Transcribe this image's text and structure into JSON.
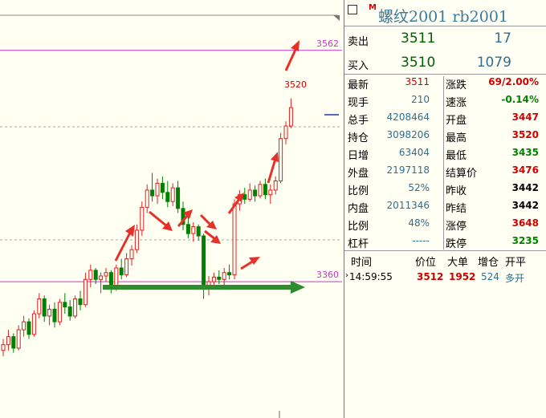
{
  "header": {
    "title": "螺纹2001 rb2001"
  },
  "order_book": [
    {
      "label": "卖出",
      "price": 3511,
      "volume": 17
    },
    {
      "label": "买入",
      "price": 3510,
      "volume": 1079
    }
  ],
  "stats": [
    {
      "label": "最新",
      "value": 3511,
      "color": "#d00000",
      "label2": "涨跌",
      "value2": "69/2.00%",
      "color2": "#d00000"
    },
    {
      "label": "现手",
      "value": 210,
      "color": "#2f6f8f",
      "label2": "速涨",
      "value2": "-0.14%",
      "color2": "#008000"
    },
    {
      "label": "总手",
      "value": 4208464,
      "color": "#2f6f8f",
      "label2": "开盘",
      "value2": 3447,
      "color2": "#d00000"
    },
    {
      "label": "持仓",
      "value": 3098206,
      "color": "#2f6f8f",
      "label2": "最高",
      "value2": 3520,
      "color2": "#d00000"
    },
    {
      "label": "日增",
      "value": 63404,
      "color": "#2f6f8f",
      "label2": "最低",
      "value2": 3435,
      "color2": "#008000"
    },
    {
      "label": "外盘",
      "value": 2197118,
      "color": "#2f6f8f",
      "label2": "结算价",
      "value2": 3476,
      "color2": "#d00000"
    },
    {
      "label": "比例",
      "value": "52%",
      "color": "#2f6f8f",
      "label2": "昨收",
      "value2": 3442,
      "color2": "#000000"
    },
    {
      "label": "内盘",
      "value": 2011346,
      "color": "#2f6f8f",
      "label2": "昨结",
      "value2": 3442,
      "color2": "#000000"
    },
    {
      "label": "比例",
      "value": "48%",
      "color": "#2f6f8f",
      "label2": "涨停",
      "value2": 3648,
      "color2": "#d00000"
    },
    {
      "label": "杠杆",
      "value": "-----",
      "color": "#2f6f8f",
      "label2": "跌停",
      "value2": 3235,
      "color2": "#008000"
    }
  ],
  "trades": {
    "columns": [
      "时间",
      "价位",
      "大单",
      "增仓",
      "开平"
    ],
    "rows": [
      [
        "14:59:55",
        3512,
        1952,
        524,
        "多开"
      ]
    ]
  },
  "chart_data": {
    "type": "candlestick",
    "ylim": [
      3241,
      3606
    ],
    "up_color": "#e02020",
    "down_color": "#008000",
    "levels": [
      {
        "value": 3562,
        "color": "#cc33cc"
      },
      {
        "value": 3360,
        "color": "#cc33cc"
      }
    ],
    "high_label": 3520,
    "open": [
      3300,
      3305,
      3312,
      3302,
      3318,
      3325,
      3314,
      3332,
      3345,
      3330,
      3336,
      3325,
      3342,
      3338,
      3330,
      3345,
      3340,
      3362,
      3370,
      3362,
      3365,
      3368,
      3355,
      3372,
      3366,
      3380,
      3388,
      3405,
      3425,
      3440,
      3435,
      3446,
      3438,
      3430,
      3442,
      3424,
      3410,
      3402,
      3408,
      3400,
      3355,
      3360,
      3364,
      3362,
      3368,
      3366,
      3428,
      3436,
      3432,
      3440,
      3435,
      3445,
      3436,
      3440,
      3448,
      3485,
      3496
    ],
    "high": [
      3310,
      3318,
      3315,
      3322,
      3330,
      3328,
      3335,
      3350,
      3348,
      3340,
      3342,
      3345,
      3350,
      3344,
      3348,
      3352,
      3368,
      3375,
      3372,
      3368,
      3372,
      3370,
      3375,
      3380,
      3385,
      3392,
      3410,
      3430,
      3445,
      3455,
      3450,
      3452,
      3448,
      3446,
      3448,
      3430,
      3418,
      3412,
      3410,
      3402,
      3365,
      3368,
      3370,
      3372,
      3375,
      3432,
      3440,
      3442,
      3446,
      3444,
      3448,
      3450,
      3445,
      3452,
      3490,
      3500,
      3520
    ],
    "low": [
      3295,
      3300,
      3298,
      3300,
      3312,
      3310,
      3312,
      3328,
      3325,
      3322,
      3320,
      3322,
      3332,
      3326,
      3328,
      3335,
      3338,
      3355,
      3358,
      3350,
      3360,
      3350,
      3352,
      3362,
      3364,
      3374,
      3385,
      3400,
      3420,
      3430,
      3428,
      3432,
      3425,
      3426,
      3420,
      3405,
      3398,
      3395,
      3396,
      3345,
      3348,
      3354,
      3358,
      3356,
      3362,
      3362,
      3422,
      3428,
      3430,
      3430,
      3433,
      3432,
      3428,
      3436,
      3446,
      3480,
      3494
    ],
    "close": [
      3305,
      3312,
      3302,
      3318,
      3325,
      3314,
      3332,
      3345,
      3330,
      3336,
      3325,
      3342,
      3338,
      3330,
      3345,
      3340,
      3362,
      3370,
      3362,
      3365,
      3368,
      3355,
      3372,
      3366,
      3380,
      3388,
      3405,
      3425,
      3440,
      3435,
      3446,
      3438,
      3430,
      3442,
      3424,
      3410,
      3402,
      3408,
      3400,
      3355,
      3360,
      3364,
      3362,
      3368,
      3366,
      3428,
      3436,
      3432,
      3440,
      3435,
      3445,
      3436,
      3440,
      3448,
      3485,
      3496,
      3512
    ]
  }
}
